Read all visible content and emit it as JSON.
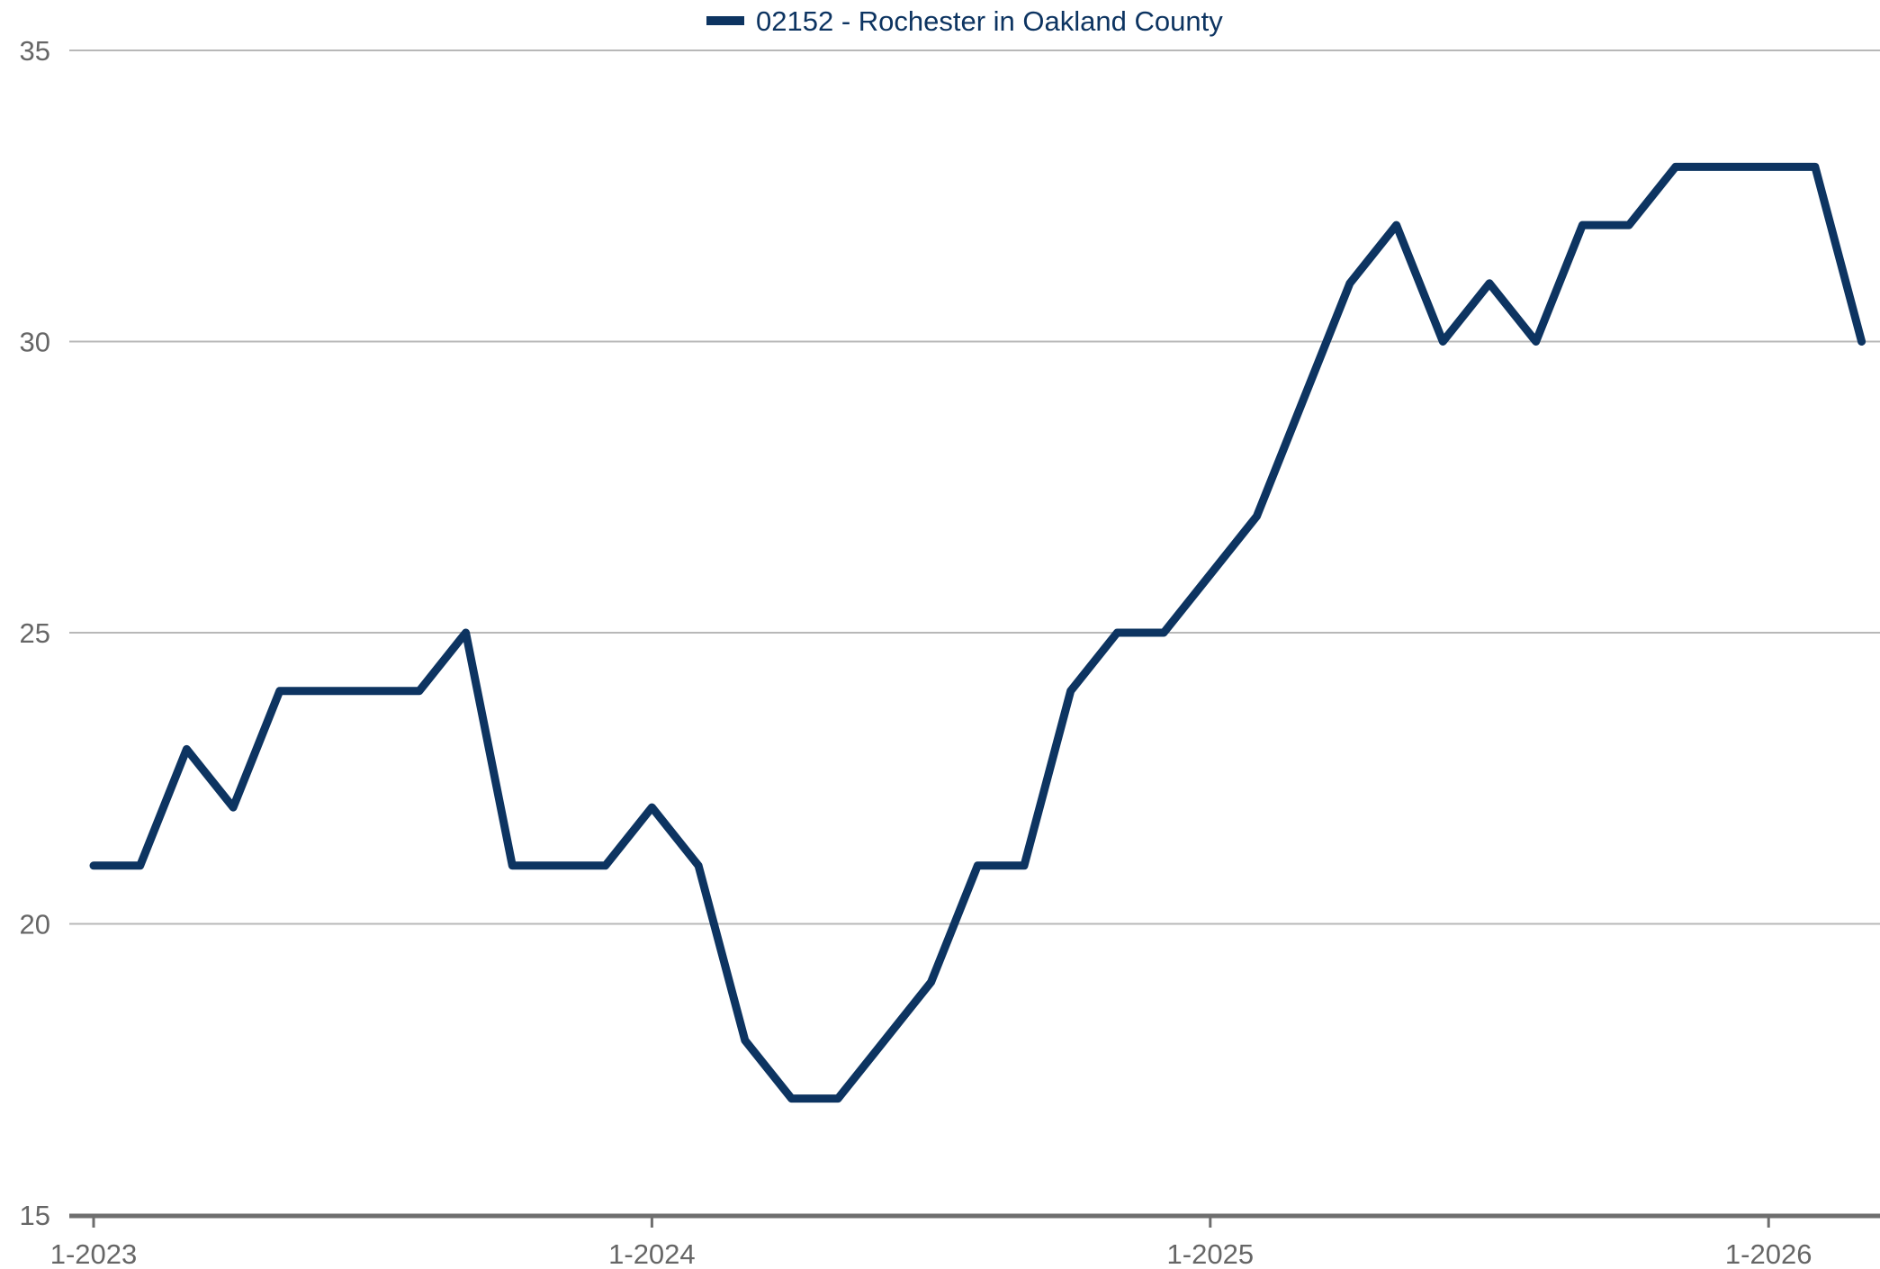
{
  "chart_data": {
    "type": "line",
    "title": "",
    "xlabel": "",
    "ylabel": "",
    "legend_position": "top-center",
    "grid": true,
    "x_tick_labels": [
      "1-2023",
      "1-2024",
      "1-2025",
      "1-2026"
    ],
    "y_tick_labels": [
      "15",
      "20",
      "25",
      "30",
      "35"
    ],
    "ylim": [
      15,
      35
    ],
    "x_range": [
      "1-2023",
      "3-2026"
    ],
    "colors": {
      "series": "#0d3461",
      "grid": "#b8b8b8",
      "axis": "#6e6e6e",
      "tick_label": "#666666"
    },
    "series": [
      {
        "name": "02152 - Rochester in Oakland County",
        "x": [
          "1-2023",
          "2-2023",
          "3-2023",
          "4-2023",
          "5-2023",
          "6-2023",
          "7-2023",
          "8-2023",
          "9-2023",
          "10-2023",
          "11-2023",
          "12-2023",
          "1-2024",
          "2-2024",
          "3-2024",
          "4-2024",
          "5-2024",
          "6-2024",
          "7-2024",
          "8-2024",
          "9-2024",
          "10-2024",
          "11-2024",
          "12-2024",
          "1-2025",
          "2-2025",
          "3-2025",
          "4-2025",
          "5-2025",
          "6-2025",
          "7-2025",
          "8-2025",
          "9-2025",
          "10-2025",
          "11-2025",
          "12-2025",
          "1-2026",
          "2-2026",
          "3-2026"
        ],
        "values": [
          21,
          21,
          23,
          22,
          24,
          24,
          24,
          24,
          25,
          21,
          21,
          21,
          22,
          21,
          18,
          17,
          17,
          18,
          19,
          21,
          21,
          24,
          25,
          25,
          26,
          27,
          29,
          31,
          32,
          30,
          31,
          30,
          32,
          32,
          33,
          33,
          33,
          33,
          30
        ]
      }
    ]
  }
}
